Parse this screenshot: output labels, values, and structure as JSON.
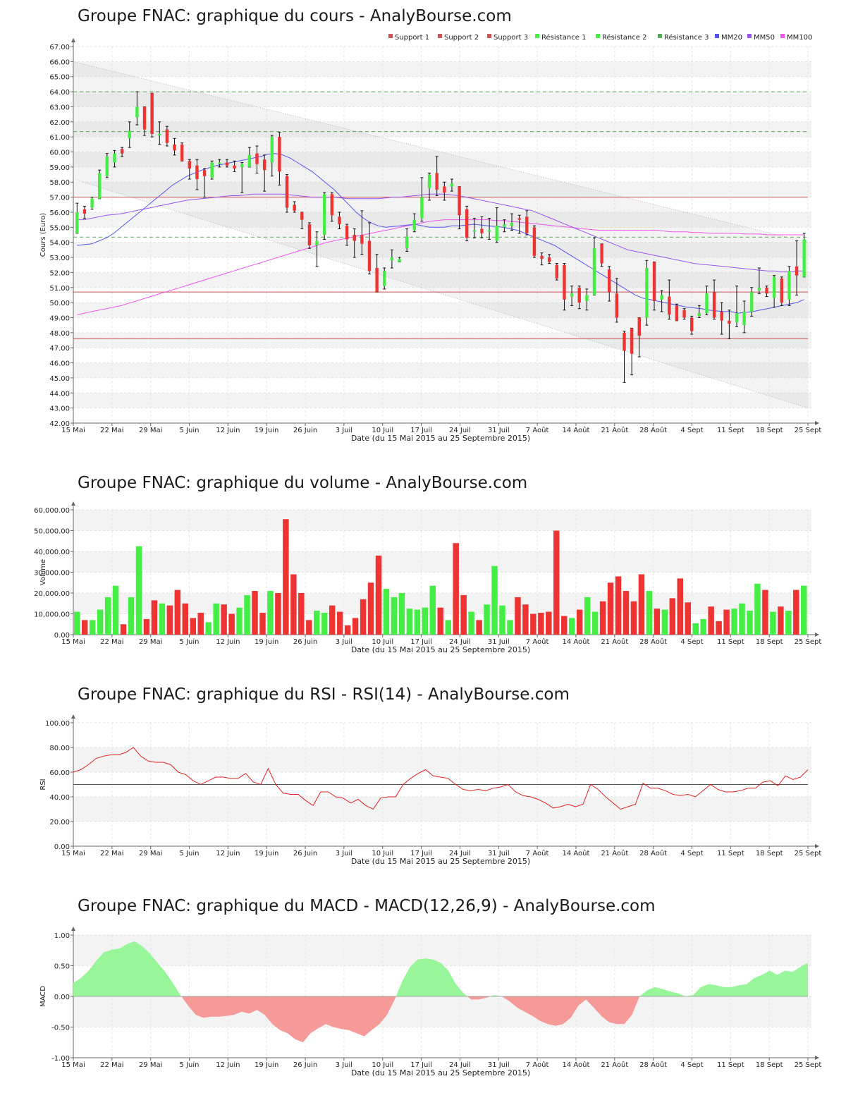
{
  "x_ticks": [
    "15 Mai",
    "22 Mai",
    "29 Mai",
    "5 Juin",
    "12 Juin",
    "19 Juin",
    "26 Juin",
    "3 Juil",
    "10 Juil",
    "17 Juil",
    "24 Juil",
    "31 Juil",
    "7 Août",
    "14 Août",
    "21 Août",
    "28 Août",
    "4 Sept",
    "11 Sept",
    "18 Sept",
    "25 Sept"
  ],
  "x_label": "Date (du 15 Mai 2015 au 25 Septembre 2015)",
  "colors": {
    "up": "#44ee44",
    "down": "#ee3333",
    "mm20": "#5555ee",
    "mm50": "#9955ee",
    "mm100": "#ee55ee",
    "support": "#cc5555",
    "resistance": "#55aa55",
    "rsi": "#dd2222",
    "macd_pos": "#99f599",
    "macd_neg": "#f59999"
  },
  "chart_data": [
    {
      "type": "candlestick",
      "title": "Groupe FNAC: graphique du cours - AnalyBourse.com",
      "ylabel": "Cours (Euro)",
      "ylim": [
        42,
        67
      ],
      "yticks": [
        "42.00",
        "43.00",
        "44.00",
        "45.00",
        "46.00",
        "47.00",
        "48.00",
        "49.00",
        "50.00",
        "51.00",
        "52.00",
        "53.00",
        "54.00",
        "55.00",
        "56.00",
        "57.00",
        "58.00",
        "59.00",
        "60.00",
        "61.00",
        "62.00",
        "63.00",
        "64.00",
        "65.00",
        "66.00",
        "67.00"
      ],
      "legend": [
        "Support 1",
        "Support 2",
        "Support 3",
        "Résistance 1",
        "Résistance 2",
        "Résistance 3",
        "MM20",
        "MM50",
        "MM100"
      ],
      "levels": {
        "support": [
          57.0,
          50.7,
          47.6
        ],
        "resistance": [
          64.0,
          61.35,
          54.35
        ]
      },
      "candles": [
        [
          54.6,
          56.0,
          56.6,
          54.6
        ],
        [
          56.2,
          55.9,
          56.4,
          55.6
        ],
        [
          56.3,
          56.9,
          57.0,
          56.2
        ],
        [
          56.9,
          58.6,
          58.8,
          56.9
        ],
        [
          58.4,
          59.7,
          59.9,
          58.3
        ],
        [
          59.3,
          59.9,
          60.1,
          59.0
        ],
        [
          60.2,
          59.9,
          60.3,
          59.7
        ],
        [
          60.9,
          61.4,
          62.0,
          60.3
        ],
        [
          62.3,
          63.0,
          64.0,
          61.8
        ],
        [
          63.0,
          61.5,
          63.0,
          61.1
        ],
        [
          63.9,
          61.2,
          63.9,
          61.0
        ],
        [
          61.1,
          61.2,
          62.0,
          60.5
        ],
        [
          61.5,
          60.6,
          61.7,
          60.4
        ],
        [
          60.5,
          60.1,
          60.9,
          59.8
        ],
        [
          60.5,
          59.4,
          60.6,
          59.4
        ],
        [
          59.4,
          58.9,
          59.5,
          58.2
        ],
        [
          59.1,
          58.2,
          59.5,
          57.5
        ],
        [
          58.8,
          58.4,
          58.9,
          57.0
        ],
        [
          58.3,
          59.3,
          59.4,
          58.2
        ],
        [
          59.2,
          59.3,
          59.5,
          59.0
        ],
        [
          59.3,
          59.1,
          59.5,
          59.0
        ],
        [
          59.1,
          58.9,
          59.4,
          58.7
        ],
        [
          59.0,
          59.2,
          59.3,
          57.3
        ],
        [
          59.0,
          59.8,
          60.3,
          59.0
        ],
        [
          59.9,
          59.2,
          60.4,
          58.6
        ],
        [
          59.5,
          58.8,
          59.8,
          57.4
        ],
        [
          59.3,
          61.0,
          61.1,
          58.4
        ],
        [
          61.0,
          58.7,
          61.3,
          57.8
        ],
        [
          58.4,
          56.3,
          58.5,
          56.0
        ],
        [
          56.5,
          56.1,
          56.7,
          56.0
        ],
        [
          56.0,
          55.5,
          56.0,
          54.9
        ],
        [
          55.2,
          53.8,
          55.3,
          53.6
        ],
        [
          53.8,
          54.1,
          54.7,
          52.4
        ],
        [
          54.5,
          57.2,
          57.3,
          54.2
        ],
        [
          57.2,
          55.8,
          57.3,
          55.4
        ],
        [
          55.7,
          55.2,
          56.0,
          54.9
        ],
        [
          55.1,
          54.2,
          55.2,
          53.8
        ],
        [
          54.5,
          54.1,
          54.9,
          53.0
        ],
        [
          54.5,
          53.9,
          56.1,
          53.2
        ],
        [
          54.1,
          52.1,
          55.3,
          51.9
        ],
        [
          52.3,
          50.7,
          53.2,
          50.7
        ],
        [
          51.1,
          52.1,
          52.3,
          50.9
        ],
        [
          52.8,
          53.0,
          53.5,
          52.3
        ],
        [
          52.7,
          52.9,
          53.0,
          52.7
        ],
        [
          53.6,
          54.4,
          54.9,
          53.4
        ],
        [
          54.8,
          55.5,
          55.9,
          54.7
        ],
        [
          55.6,
          57.0,
          58.3,
          55.4
        ],
        [
          57.6,
          58.5,
          58.6,
          56.8
        ],
        [
          58.6,
          57.5,
          59.7,
          57.1
        ],
        [
          57.7,
          57.3,
          58.0,
          56.8
        ],
        [
          57.7,
          57.9,
          58.2,
          57.4
        ],
        [
          57.7,
          55.8,
          57.7,
          54.9
        ],
        [
          56.2,
          54.3,
          56.4,
          54.1
        ],
        [
          54.7,
          54.8,
          55.6,
          54.3
        ],
        [
          54.9,
          54.6,
          55.7,
          54.3
        ],
        [
          54.7,
          54.8,
          55.6,
          54.2
        ],
        [
          54.1,
          55.1,
          56.3,
          54.0
        ],
        [
          55.0,
          55.2,
          55.5,
          54.7
        ],
        [
          55.1,
          55.3,
          55.9,
          54.8
        ],
        [
          55.6,
          55.5,
          55.8,
          54.6
        ],
        [
          55.7,
          54.6,
          56.1,
          54.5
        ],
        [
          55.0,
          53.1,
          55.1,
          53.0
        ],
        [
          53.1,
          52.9,
          53.3,
          52.5
        ],
        [
          53.0,
          52.7,
          53.2,
          52.6
        ],
        [
          52.5,
          51.6,
          52.6,
          51.5
        ],
        [
          52.5,
          50.2,
          52.6,
          49.5
        ],
        [
          50.4,
          50.6,
          51.1,
          49.8
        ],
        [
          51.0,
          50.0,
          51.1,
          49.6
        ],
        [
          50.1,
          50.5,
          50.9,
          49.5
        ],
        [
          50.5,
          53.6,
          54.3,
          50.5
        ],
        [
          53.9,
          52.6,
          53.9,
          52.4
        ],
        [
          52.2,
          50.7,
          52.4,
          50.1
        ],
        [
          50.6,
          49.0,
          51.6,
          48.7
        ],
        [
          48.0,
          46.8,
          48.1,
          44.7
        ],
        [
          48.3,
          46.6,
          48.3,
          45.2
        ],
        [
          49.0,
          47.8,
          49.0,
          46.4
        ],
        [
          49.0,
          52.3,
          52.8,
          48.5
        ],
        [
          52.7,
          50.1,
          52.7,
          49.5
        ],
        [
          50.2,
          50.5,
          50.8,
          49.4
        ],
        [
          50.4,
          49.2,
          51.5,
          48.9
        ],
        [
          49.8,
          48.8,
          49.9,
          48.8
        ],
        [
          49.5,
          49.0,
          49.6,
          48.9
        ],
        [
          49.0,
          48.1,
          49.1,
          47.9
        ],
        [
          49.1,
          49.3,
          49.8,
          49.0
        ],
        [
          49.3,
          50.6,
          51.1,
          49.2
        ],
        [
          50.7,
          49.0,
          51.5,
          48.9
        ],
        [
          49.4,
          48.8,
          50.0,
          47.9
        ],
        [
          48.8,
          48.6,
          49.5,
          47.6
        ],
        [
          48.7,
          49.3,
          51.1,
          48.4
        ],
        [
          48.5,
          49.4,
          50.1,
          48.0
        ],
        [
          49.4,
          50.7,
          51.0,
          49.1
        ],
        [
          50.8,
          51.0,
          52.3,
          50.6
        ],
        [
          51.0,
          50.6,
          51.1,
          50.4
        ],
        [
          50.3,
          51.7,
          51.8,
          49.7
        ],
        [
          51.6,
          50.0,
          51.7,
          49.8
        ],
        [
          50.2,
          52.1,
          52.4,
          49.8
        ],
        [
          52.4,
          51.8,
          54.1,
          50.5
        ],
        [
          51.7,
          54.2,
          54.6,
          51.7
        ]
      ],
      "mm20": [
        53.8,
        53.85,
        53.9,
        54.1,
        54.3,
        54.6,
        55.0,
        55.4,
        55.8,
        56.2,
        56.6,
        57.0,
        57.4,
        57.8,
        58.1,
        58.4,
        58.6,
        58.8,
        58.95,
        59.1,
        59.2,
        59.3,
        59.4,
        59.5,
        59.6,
        59.7,
        59.85,
        59.9,
        59.8,
        59.6,
        59.3,
        59.0,
        58.7,
        58.3,
        57.9,
        57.5,
        57.0,
        56.5,
        56.0,
        55.6,
        55.3,
        55.1,
        55.0,
        55.05,
        55.1,
        55.15,
        55.2,
        55.1,
        55.0,
        55.0,
        55.0,
        55.1,
        55.1,
        55.15,
        55.2,
        55.15,
        55.1,
        55.05,
        55.0,
        54.9,
        54.8,
        54.6,
        54.4,
        54.2,
        54.0,
        53.8,
        53.5,
        53.2,
        52.9,
        52.6,
        52.3,
        52.0,
        51.7,
        51.4,
        51.1,
        50.8,
        50.5,
        50.3,
        50.2,
        50.1,
        50.0,
        49.9,
        49.8,
        49.7,
        49.65,
        49.6,
        49.5,
        49.45,
        49.4,
        49.4,
        49.3,
        49.35,
        49.4,
        49.5,
        49.6,
        49.7,
        49.8,
        49.9,
        50.0,
        50.2
      ],
      "mm50": [
        55.5,
        55.5,
        55.6,
        55.7,
        55.8,
        55.85,
        55.9,
        56.0,
        56.1,
        56.2,
        56.3,
        56.4,
        56.5,
        56.6,
        56.7,
        56.8,
        56.85,
        56.9,
        56.95,
        57.0,
        57.05,
        57.1,
        57.1,
        57.15,
        57.2,
        57.2,
        57.2,
        57.2,
        57.2,
        57.15,
        57.1,
        57.05,
        57.0,
        57.0,
        57.0,
        57.0,
        56.95,
        56.9,
        56.9,
        56.9,
        56.9,
        56.9,
        56.95,
        57.0,
        57.0,
        57.05,
        57.1,
        57.15,
        57.2,
        57.2,
        57.2,
        57.15,
        57.1,
        57.0,
        56.9,
        56.8,
        56.7,
        56.6,
        56.5,
        56.4,
        56.3,
        56.2,
        56.1,
        55.9,
        55.7,
        55.5,
        55.3,
        55.1,
        54.9,
        54.7,
        54.5,
        54.3,
        54.1,
        53.9,
        53.7,
        53.5,
        53.4,
        53.3,
        53.2,
        53.1,
        53.0,
        52.9,
        52.8,
        52.7,
        52.6,
        52.55,
        52.5,
        52.45,
        52.4,
        52.35,
        52.3,
        52.25,
        52.2,
        52.15,
        52.1,
        52.1,
        52.05,
        52.05,
        52.1,
        52.1
      ],
      "mm100": [
        49.2,
        49.3,
        49.4,
        49.5,
        49.6,
        49.7,
        49.8,
        49.95,
        50.1,
        50.25,
        50.4,
        50.55,
        50.7,
        50.85,
        51.0,
        51.15,
        51.3,
        51.45,
        51.6,
        51.75,
        51.9,
        52.05,
        52.2,
        52.35,
        52.5,
        52.65,
        52.8,
        52.95,
        53.1,
        53.25,
        53.4,
        53.55,
        53.7,
        53.85,
        54.0,
        54.1,
        54.2,
        54.3,
        54.4,
        54.5,
        54.6,
        54.7,
        54.8,
        54.9,
        55.0,
        55.1,
        55.2,
        55.3,
        55.4,
        55.45,
        55.5,
        55.5,
        55.5,
        55.5,
        55.5,
        55.5,
        55.5,
        55.45,
        55.45,
        55.4,
        55.35,
        55.3,
        55.25,
        55.2,
        55.15,
        55.1,
        55.05,
        55.0,
        54.95,
        54.9,
        54.85,
        54.8,
        54.8,
        54.8,
        54.8,
        54.8,
        54.8,
        54.8,
        54.8,
        54.8,
        54.75,
        54.7,
        54.7,
        54.7,
        54.65,
        54.65,
        54.6,
        54.6,
        54.6,
        54.6,
        54.6,
        54.55,
        54.55,
        54.55,
        54.5,
        54.5,
        54.5,
        54.5,
        54.5,
        54.5
      ],
      "trend_channel": {
        "upper": [
          66.0,
          54.0
        ],
        "lower": [
          58.2,
          43.0
        ]
      }
    },
    {
      "type": "bar",
      "title": "Groupe FNAC: graphique du volume - AnalyBourse.com",
      "ylabel": "Volume",
      "ylim": [
        0,
        60000
      ],
      "yticks": [
        "0.00",
        "10,000.00",
        "20,000.00",
        "30,000.00",
        "40,000.00",
        "50,000.00",
        "60,000.00"
      ],
      "values": [
        11000,
        7000,
        7000,
        12000,
        18000,
        23500,
        5000,
        18000,
        42500,
        7500,
        16500,
        15000,
        14000,
        21500,
        15000,
        8000,
        10500,
        6000,
        15000,
        14500,
        10000,
        13000,
        19000,
        21000,
        10500,
        21000,
        20000,
        55500,
        29000,
        20000,
        7000,
        11500,
        10500,
        14000,
        11000,
        4500,
        8000,
        17000,
        25000,
        38000,
        22000,
        18000,
        20000,
        12500,
        12000,
        13000,
        23500,
        13000,
        7000,
        44000,
        19000,
        11000,
        7000,
        14500,
        33000,
        14000,
        7000,
        18000,
        14500,
        10000,
        10500,
        11000,
        50000,
        9000,
        8000,
        12000,
        18000,
        11000,
        16000,
        25000,
        28000,
        21000,
        16000,
        29000,
        21000,
        12500,
        12000,
        17500,
        27000,
        15500,
        5500,
        7500,
        13500,
        6500,
        12000,
        12500,
        15000,
        11500,
        24500,
        21500,
        11000,
        13500,
        11500,
        21500,
        23500
      ]
    },
    {
      "type": "line",
      "title": "Groupe FNAC: graphique du RSI - RSI(14) - AnalyBourse.com",
      "ylabel": "RSI",
      "ylim": [
        0,
        100
      ],
      "yticks": [
        "0.00",
        "20.00",
        "40.00",
        "60.00",
        "80.00",
        "100.00"
      ],
      "reference": 50,
      "values": [
        60,
        62,
        66,
        71,
        73,
        74,
        74,
        76,
        80,
        73,
        69,
        68,
        68,
        66,
        60,
        58,
        53,
        50,
        53,
        56,
        56,
        55,
        55,
        59,
        52,
        50,
        63,
        50,
        43,
        42,
        42,
        37,
        33,
        44,
        44,
        40,
        39,
        35,
        38,
        33,
        30,
        39,
        40,
        40,
        50,
        55,
        59,
        62,
        57,
        56,
        55,
        50,
        46,
        45,
        46,
        45,
        47,
        48,
        50,
        44,
        41,
        40,
        38,
        35,
        31,
        32,
        34,
        32,
        34,
        50,
        46,
        40,
        35,
        30,
        32,
        34,
        51,
        47,
        47,
        45,
        42,
        41,
        42,
        40,
        45,
        50,
        46,
        44,
        44,
        45,
        47,
        47,
        52,
        53,
        49,
        57,
        54,
        56,
        62
      ]
    },
    {
      "type": "area",
      "title": "Groupe FNAC: graphique du MACD - MACD(12,26,9) - AnalyBourse.com",
      "ylabel": "MACD",
      "ylim": [
        -1,
        1
      ],
      "yticks": [
        "-1.00",
        "-0.50",
        "0.00",
        "0.50",
        "1.00"
      ],
      "values": [
        0.22,
        0.3,
        0.42,
        0.58,
        0.72,
        0.76,
        0.78,
        0.85,
        0.9,
        0.82,
        0.7,
        0.55,
        0.4,
        0.22,
        0.02,
        -0.15,
        -0.3,
        -0.35,
        -0.33,
        -0.33,
        -0.32,
        -0.3,
        -0.25,
        -0.28,
        -0.22,
        -0.3,
        -0.45,
        -0.55,
        -0.6,
        -0.7,
        -0.75,
        -0.6,
        -0.52,
        -0.45,
        -0.5,
        -0.53,
        -0.55,
        -0.6,
        -0.65,
        -0.55,
        -0.45,
        -0.3,
        -0.05,
        0.25,
        0.48,
        0.6,
        0.62,
        0.6,
        0.55,
        0.42,
        0.2,
        0.05,
        -0.05,
        -0.05,
        -0.02,
        0.02,
        0.0,
        -0.08,
        -0.18,
        -0.25,
        -0.32,
        -0.4,
        -0.45,
        -0.48,
        -0.45,
        -0.35,
        -0.15,
        -0.05,
        -0.18,
        -0.32,
        -0.42,
        -0.45,
        -0.45,
        -0.3,
        0.0,
        0.1,
        0.15,
        0.12,
        0.08,
        0.05,
        0.0,
        0.02,
        0.15,
        0.2,
        0.18,
        0.15,
        0.15,
        0.18,
        0.2,
        0.3,
        0.35,
        0.42,
        0.35,
        0.42,
        0.4,
        0.48,
        0.55
      ]
    }
  ]
}
